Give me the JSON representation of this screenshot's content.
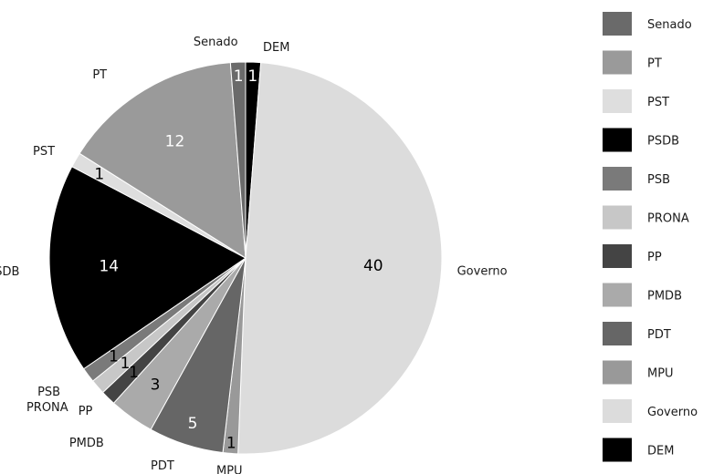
{
  "chart_data": {
    "type": "pie",
    "slices": [
      {
        "label": "DEM",
        "value": 1,
        "color": "#000000",
        "text_color": "#ffffff"
      },
      {
        "label": "Governo",
        "value": 40,
        "color": "#dcdcdc",
        "text_color": "#000000"
      },
      {
        "label": "MPU",
        "value": 1,
        "color": "#999999",
        "text_color": "#000000"
      },
      {
        "label": "PDT",
        "value": 5,
        "color": "#666666",
        "text_color": "#ffffff"
      },
      {
        "label": "PMDB",
        "value": 3,
        "color": "#aaaaaa",
        "text_color": "#000000"
      },
      {
        "label": "PP",
        "value": 1,
        "color": "#444444",
        "text_color": "#000000"
      },
      {
        "label": "PRONA",
        "value": 1,
        "color": "#c7c7c7",
        "text_color": "#000000"
      },
      {
        "label": "PSB",
        "value": 1,
        "color": "#7a7a7a",
        "text_color": "#000000"
      },
      {
        "label": "PSDB",
        "value": 14,
        "color": "#000000",
        "text_color": "#ffffff"
      },
      {
        "label": "PST",
        "value": 1,
        "color": "#dedede",
        "text_color": "#000000"
      },
      {
        "label": "PT",
        "value": 12,
        "color": "#9a9a9a",
        "text_color": "#ffffff"
      },
      {
        "label": "Senado",
        "value": 1,
        "color": "#6a6a6a",
        "text_color": "#ffffff"
      }
    ],
    "legend": {
      "placement": "right",
      "entries": [
        {
          "label": "Senado",
          "color": "#6a6a6a"
        },
        {
          "label": "PT",
          "color": "#9a9a9a"
        },
        {
          "label": "PST",
          "color": "#dedede"
        },
        {
          "label": "PSDB",
          "color": "#000000"
        },
        {
          "label": "PSB",
          "color": "#7a7a7a"
        },
        {
          "label": "PRONA",
          "color": "#c7c7c7"
        },
        {
          "label": "PP",
          "color": "#444444"
        },
        {
          "label": "PMDB",
          "color": "#aaaaaa"
        },
        {
          "label": "PDT",
          "color": "#666666"
        },
        {
          "label": "MPU",
          "color": "#999999"
        },
        {
          "label": "Governo",
          "color": "#dcdcdc"
        },
        {
          "label": "DEM",
          "color": "#000000"
        }
      ]
    }
  }
}
